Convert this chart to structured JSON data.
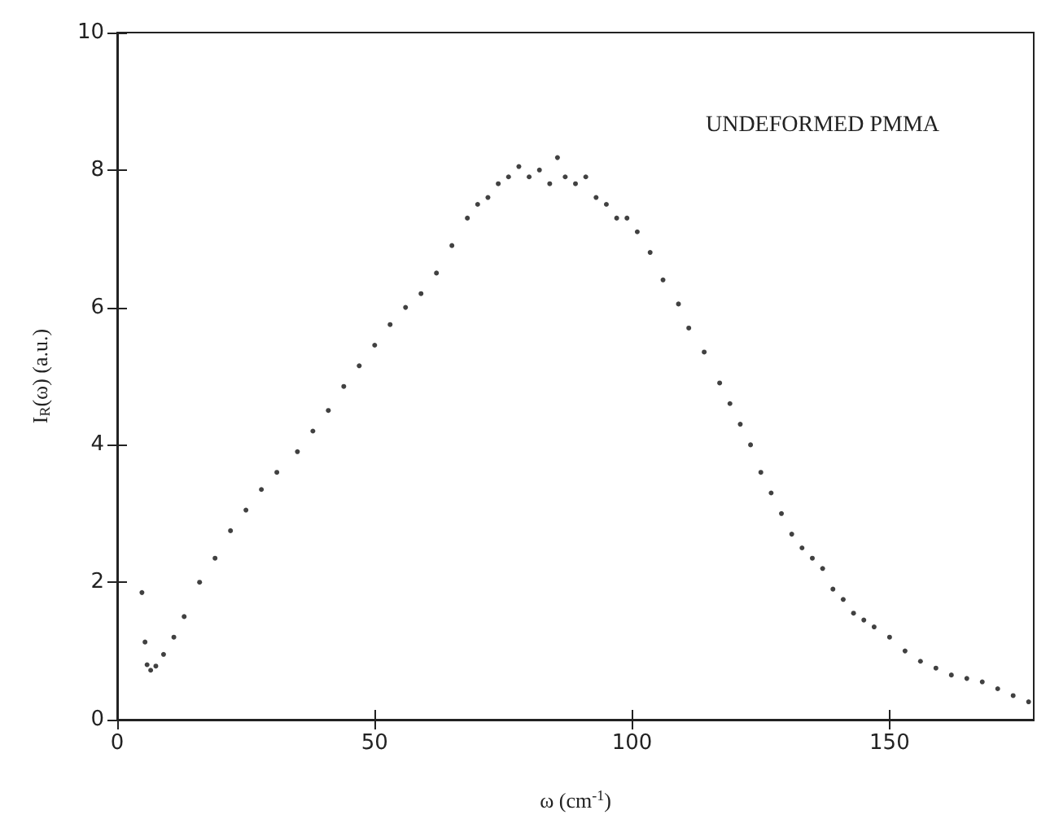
{
  "chart_data": {
    "type": "scatter",
    "xlabel": "ω (cm$^{-1}$)",
    "ylabel": "I$_{R}$(ω) (a.u.)",
    "annotations": [
      "UNDEFORMED PMMA"
    ],
    "xlim": [
      0,
      178
    ],
    "xticks": [
      0,
      50,
      100,
      150
    ],
    "ylim": [
      0,
      10
    ],
    "yticks": [
      0,
      2,
      4,
      6,
      8,
      10
    ],
    "grid": false,
    "marker": "circle",
    "series": [
      {
        "color": "#111111",
        "x": [
          4.8,
          5.4,
          5.8,
          6.5,
          7.5,
          9,
          11,
          13,
          16,
          19,
          22,
          25,
          28,
          31,
          35,
          38,
          41,
          44,
          47,
          50,
          53,
          56,
          59,
          62,
          65,
          68,
          70,
          72,
          74,
          76,
          78,
          80,
          82,
          84,
          85.5,
          87,
          89,
          91,
          93,
          95,
          97,
          99,
          101,
          103.5,
          106,
          109,
          111,
          114,
          117,
          119,
          121,
          123,
          125,
          127,
          129,
          131,
          133,
          135,
          137,
          139,
          141,
          143,
          145,
          147,
          150,
          153,
          156,
          159,
          162,
          165,
          168,
          171,
          174,
          177
        ],
        "values": [
          1.85,
          1.13,
          0.8,
          0.72,
          0.78,
          0.95,
          1.2,
          1.5,
          2.0,
          2.35,
          2.75,
          3.05,
          3.35,
          3.6,
          3.9,
          4.2,
          4.5,
          4.85,
          5.15,
          5.45,
          5.75,
          6.0,
          6.2,
          6.5,
          6.9,
          7.3,
          7.5,
          7.6,
          7.8,
          7.9,
          8.05,
          7.9,
          8.0,
          7.8,
          8.18,
          7.9,
          7.8,
          7.9,
          7.6,
          7.5,
          7.3,
          7.3,
          7.1,
          6.8,
          6.4,
          6.05,
          5.7,
          5.35,
          4.9,
          4.6,
          4.3,
          4.0,
          3.6,
          3.3,
          3.0,
          2.7,
          2.5,
          2.35,
          2.2,
          1.9,
          1.75,
          1.55,
          1.45,
          1.35,
          1.2,
          1.0,
          0.85,
          0.75,
          0.65,
          0.6,
          0.55,
          0.45,
          0.35,
          0.26
        ]
      }
    ]
  }
}
